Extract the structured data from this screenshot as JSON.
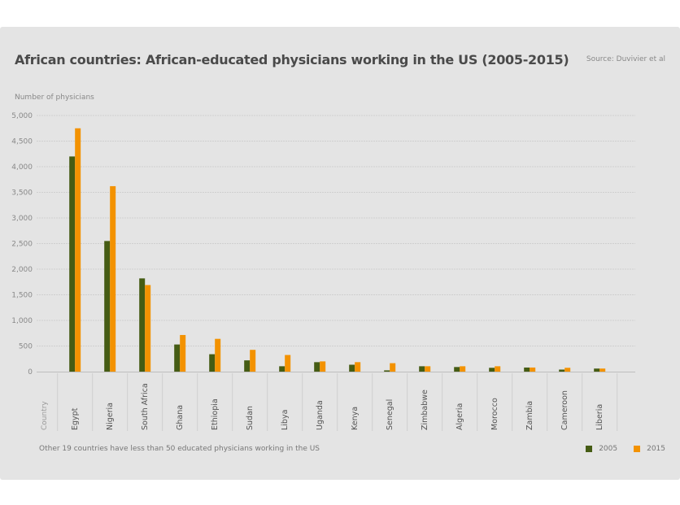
{
  "title": "African countries: African-educated physicians working in the US (2005-2015)",
  "source": "Source: Duvivier et al",
  "footnote": "Other 19 countries have less than 50 educated physicians working in the US",
  "colors": {
    "2005": "#455c14",
    "2015": "#f39200"
  },
  "chart_data": {
    "type": "bar",
    "title": "African countries: African-educated physicians working in the US (2005-2015)",
    "ylabel": "Number of physicians",
    "xlabel": "Country",
    "ylim": [
      0,
      5000
    ],
    "yticks": [
      "0",
      "500",
      "1,000",
      "1,500",
      "2,000",
      "2,500",
      "3,000",
      "3,500",
      "4,000",
      "4,500",
      "5,000"
    ],
    "ytick_values": [
      0,
      500,
      1000,
      1500,
      2000,
      2500,
      3000,
      3500,
      4000,
      4500,
      5000
    ],
    "grid": true,
    "legend": "bottom-right",
    "categories": [
      "Egypt",
      "Nigeria",
      "South Africa",
      "Ghana",
      "Ethiopia",
      "Sudan",
      "Libya",
      "Uganda",
      "Kenya",
      "Senegal",
      "Zimbabwe",
      "Algeria",
      "Morocco",
      "Zambia",
      "Cameroon",
      "Liberia"
    ],
    "series": [
      {
        "name": "2005",
        "values": [
          4200,
          2550,
          1820,
          530,
          340,
          220,
          105,
          185,
          135,
          25,
          105,
          90,
          75,
          80,
          40,
          60
        ]
      },
      {
        "name": "2015",
        "values": [
          4750,
          3620,
          1690,
          715,
          640,
          425,
          325,
          200,
          185,
          165,
          105,
          105,
          105,
          80,
          75,
          60
        ]
      }
    ]
  }
}
